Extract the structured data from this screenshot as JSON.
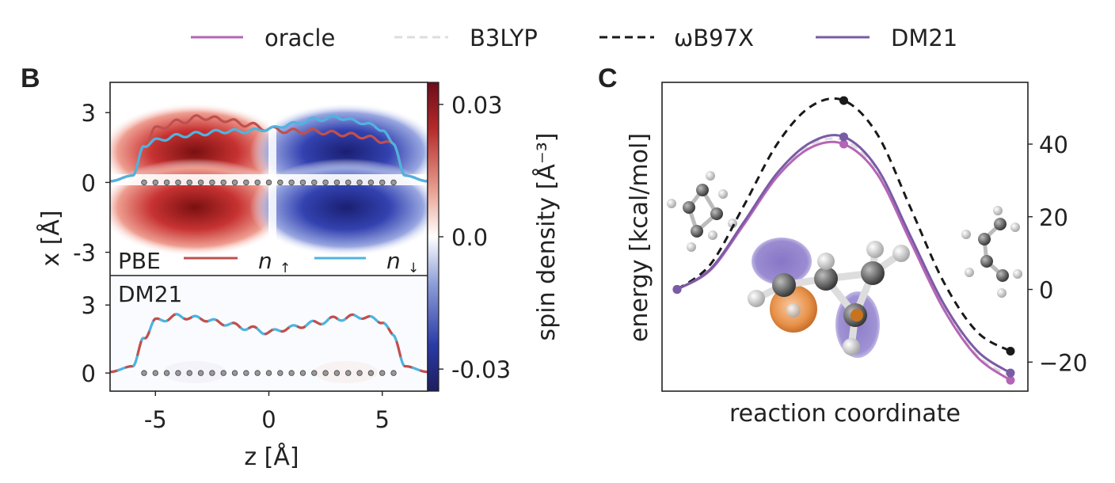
{
  "legend": {
    "entries": [
      {
        "label": "oracle",
        "color": "#b565b5",
        "style": "solid"
      },
      {
        "label": "B3LYP",
        "color": "#dddddd",
        "style": "dashed"
      },
      {
        "label": "ωB97X",
        "color": "#1a1a1a",
        "style": "dashed"
      },
      {
        "label": "DM21",
        "color": "#7a5ba6",
        "style": "solid"
      }
    ]
  },
  "panel_b": {
    "letter": "B",
    "xlabel": "z [Å]",
    "ylabel": "x [Å]",
    "colorbar_label": "spin density [Å⁻³]",
    "colorbar_ticks": [
      "0.03",
      "0.0",
      "-0.03"
    ],
    "colorbar_tick_values": [
      0.03,
      0.0,
      -0.03
    ],
    "xticks": [
      "-5",
      "0",
      "5"
    ],
    "xtick_values": [
      -5,
      0,
      5
    ],
    "top_yticks": [
      "3",
      "0",
      "-3"
    ],
    "top_ytick_values": [
      3,
      0,
      -3
    ],
    "bottom_yticks": [
      "3",
      "0"
    ],
    "bottom_ytick_values": [
      3,
      0
    ],
    "top_label": "PBE",
    "bottom_label": "DM21",
    "spin_up_label": "n",
    "spin_up_arrow": "↑",
    "spin_down_label": "n",
    "spin_down_arrow": "↓",
    "spin_up_color": "#c0504d",
    "spin_down_color": "#4fb3e0"
  },
  "panel_c": {
    "letter": "C",
    "xlabel": "reaction coordinate",
    "ylabel": "energy [kcal/mol]",
    "yticks": [
      "40",
      "20",
      "0",
      "−20"
    ],
    "ytick_values": [
      40,
      20,
      0,
      -20
    ]
  },
  "chart_data": [
    {
      "type": "heatmap",
      "panel": "B",
      "title": "",
      "subplots": [
        "PBE",
        "DM21"
      ],
      "xlim": [
        -7,
        7
      ],
      "ylim_top": [
        -4,
        4.3
      ],
      "ylim_bottom": [
        -0.8,
        4.3
      ],
      "colorbar_range": [
        -0.035,
        0.035
      ],
      "atoms_z": [
        -5.5,
        -5,
        -4.5,
        -4,
        -3.5,
        -3,
        -2.5,
        -2,
        -1.5,
        -1,
        -0.5,
        0,
        0.5,
        1,
        1.5,
        2,
        2.5,
        3,
        3.5,
        4,
        4.5,
        5,
        5.5
      ],
      "series": [
        {
          "name": "n ↑",
          "subplot": "PBE",
          "z": [
            -7,
            -6,
            -5.5,
            -5,
            -4,
            -3,
            -2,
            -1,
            0,
            1,
            2,
            3,
            4,
            5,
            5.5,
            6,
            7
          ],
          "x": [
            0.05,
            0.3,
            1.6,
            2.3,
            2.6,
            2.8,
            2.7,
            2.5,
            2.3,
            2.2,
            2.2,
            2.1,
            2.0,
            1.8,
            1.6,
            0.3,
            0.05
          ]
        },
        {
          "name": "n ↓",
          "subplot": "PBE",
          "z": [
            -7,
            -6,
            -5.5,
            -5,
            -4,
            -3,
            -2,
            -1,
            0,
            1,
            2,
            3,
            4,
            5,
            5.5,
            6,
            7
          ],
          "x": [
            0.05,
            0.3,
            1.6,
            1.8,
            2.0,
            2.1,
            2.2,
            2.2,
            2.3,
            2.5,
            2.7,
            2.8,
            2.6,
            2.3,
            1.6,
            0.3,
            0.05
          ]
        },
        {
          "name": "n ↑ / n ↓",
          "subplot": "DM21",
          "z": [
            -7,
            -6,
            -5.5,
            -5,
            -4,
            -3,
            -2,
            -1,
            0,
            1,
            2,
            3,
            4,
            5,
            5.5,
            6,
            7
          ],
          "x": [
            0.05,
            0.3,
            1.6,
            2.3,
            2.5,
            2.4,
            2.2,
            2.0,
            1.8,
            2.0,
            2.2,
            2.4,
            2.5,
            2.3,
            1.6,
            0.3,
            0.05
          ]
        }
      ]
    },
    {
      "type": "line",
      "panel": "C",
      "xlabel": "reaction coordinate",
      "ylabel": "energy [kcal/mol]",
      "ylim": [
        -28,
        57
      ],
      "x": [
        0,
        0.1,
        0.2,
        0.3,
        0.4,
        0.5,
        0.6,
        0.7,
        0.8,
        0.9,
        1.0
      ],
      "series": [
        {
          "name": "oracle",
          "color": "#b565b5",
          "style": "solid",
          "values": [
            0,
            5.3,
            17.8,
            31.0,
            39.0,
            40.0,
            31.8,
            13.2,
            -5.5,
            -18.6,
            -25
          ]
        },
        {
          "name": "B3LYP",
          "color": "#dddddd",
          "style": "dashed",
          "values": [
            0,
            5.5,
            18.2,
            31.6,
            39.8,
            41.0,
            32.7,
            14.0,
            -4.9,
            -18.1,
            -24
          ]
        },
        {
          "name": "ωB97X",
          "color": "#1a1a1a",
          "style": "dashed",
          "values": [
            0,
            6.9,
            23.0,
            40.0,
            50.3,
            52.0,
            42.8,
            22.5,
            2.0,
            -11.7,
            -17
          ]
        },
        {
          "name": "DM21",
          "color": "#7a5ba6",
          "style": "solid",
          "values": [
            0,
            5.6,
            18.5,
            32.0,
            40.4,
            42.0,
            33.4,
            14.7,
            -4.0,
            -16.9,
            -23
          ]
        }
      ],
      "endpoint_markers": true
    }
  ]
}
